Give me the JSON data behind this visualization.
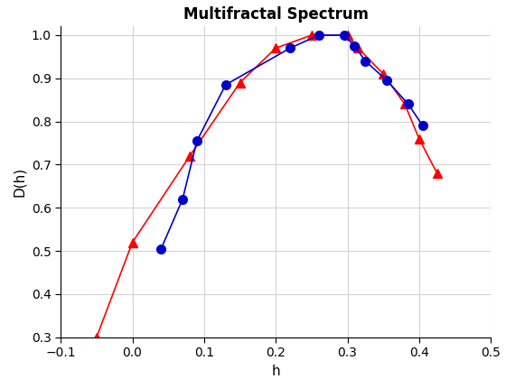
{
  "title": "Multifractal Spectrum",
  "xlabel": "h",
  "ylabel": "D(h)",
  "xlim": [
    -0.1,
    0.5
  ],
  "ylim": [
    0.3,
    1.02
  ],
  "red_x": [
    -0.05,
    0.0,
    0.08,
    0.15,
    0.2,
    0.25,
    0.3,
    0.315,
    0.35,
    0.38,
    0.4,
    0.425
  ],
  "red_y": [
    0.3,
    0.52,
    0.72,
    0.89,
    0.97,
    1.0,
    1.0,
    0.97,
    0.91,
    0.84,
    0.76,
    0.68
  ],
  "blue_x": [
    0.04,
    0.07,
    0.09,
    0.13,
    0.22,
    0.26,
    0.295,
    0.31,
    0.325,
    0.355,
    0.385,
    0.405
  ],
  "blue_y": [
    0.505,
    0.62,
    0.755,
    0.885,
    0.97,
    1.0,
    1.0,
    0.975,
    0.94,
    0.895,
    0.84,
    0.79
  ],
  "red_color": "#FF0000",
  "blue_color": "#0000CD",
  "marker_size": 7,
  "linewidth": 1.2,
  "grid_color": "#D3D3D3",
  "yticks": [
    0.3,
    0.4,
    0.5,
    0.6,
    0.7,
    0.8,
    0.9,
    1.0
  ],
  "xticks": [
    -0.1,
    0.0,
    0.1,
    0.2,
    0.3,
    0.4,
    0.5
  ],
  "title_fontsize": 12,
  "label_fontsize": 11,
  "tick_fontsize": 10
}
